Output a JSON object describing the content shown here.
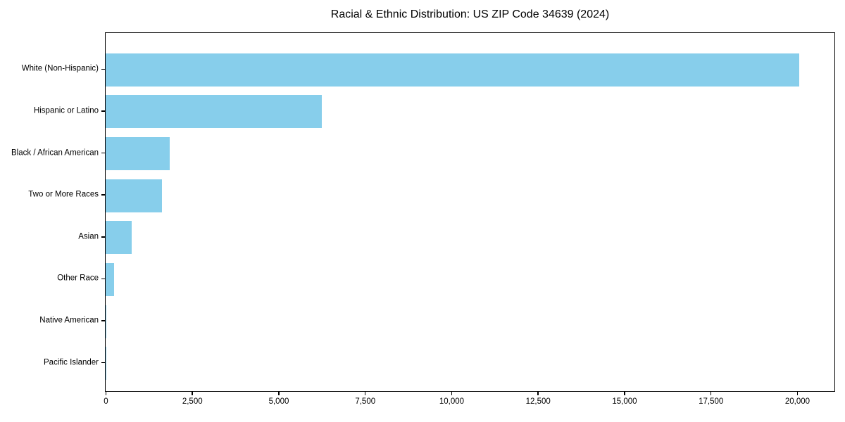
{
  "chart_data": {
    "type": "bar",
    "orientation": "horizontal",
    "title": "Racial & Ethnic Distribution: US ZIP Code 34639 (2024)",
    "categories": [
      "White (Non-Hispanic)",
      "Hispanic or Latino",
      "Black / African American",
      "Two or More Races",
      "Asian",
      "Other Race",
      "Native American",
      "Pacific Islander"
    ],
    "values": [
      20055,
      6260,
      1860,
      1625,
      745,
      245,
      25,
      5
    ],
    "bar_color": "#87ceeb",
    "axis_color": "#000000",
    "text_color": "#000000",
    "background_color": "#ffffff",
    "xlim": [
      0,
      21060
    ],
    "xticks": [
      0,
      2500,
      5000,
      7500,
      10000,
      12500,
      15000,
      17500,
      20000
    ],
    "xtick_labels": [
      "0",
      "2,500",
      "5,000",
      "7,500",
      "10,000",
      "12,500",
      "15,000",
      "17,500",
      "20,000"
    ],
    "xlabel": "",
    "ylabel": "",
    "grid": false,
    "legend": null,
    "bar_height_fraction": 0.79
  }
}
